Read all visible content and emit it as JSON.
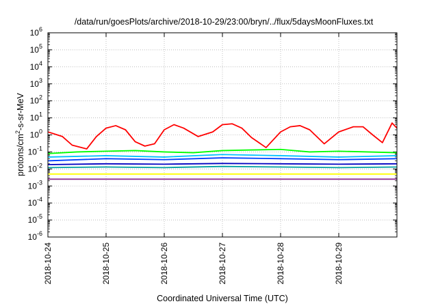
{
  "chart_data": {
    "type": "line",
    "title": "/data/run/goesPlots/archive/2018-10-29/23:00/bryn/../flux/5daysMoonFluxes.txt",
    "xlabel": "Coordinated Universal Time (UTC)",
    "ylabel_parts": [
      "protons/cm",
      "2",
      "-s-sr-MeV"
    ],
    "y_scale": "log",
    "ylim": [
      1e-06,
      1000000.0
    ],
    "y_ticks": [
      {
        "base": "10",
        "exp": "-6"
      },
      {
        "base": "10",
        "exp": "-5"
      },
      {
        "base": "10",
        "exp": "-4"
      },
      {
        "base": "10",
        "exp": "-3"
      },
      {
        "base": "10",
        "exp": "-2"
      },
      {
        "base": "10",
        "exp": "-1"
      },
      {
        "base": "10",
        "exp": "0"
      },
      {
        "base": "10",
        "exp": "1"
      },
      {
        "base": "10",
        "exp": "2"
      },
      {
        "base": "10",
        "exp": "3"
      },
      {
        "base": "10",
        "exp": "4"
      },
      {
        "base": "10",
        "exp": "5"
      },
      {
        "base": "10",
        "exp": "6"
      }
    ],
    "xlim": [
      "2018-10-24T00:00",
      "2018-10-30T00:00"
    ],
    "x_ticks": [
      "2018-10-24",
      "2018-10-25",
      "2018-10-26",
      "2018-10-27",
      "2018-10-28",
      "2018-10-29"
    ],
    "grid": true,
    "legend": false,
    "series": [
      {
        "color": "#ff0000",
        "x": [
          "2018-10-24T00:00",
          "2018-10-24T06:00",
          "2018-10-24T10:00",
          "2018-10-24T16:00",
          "2018-10-24T20:00",
          "2018-10-25T00:00",
          "2018-10-25T04:00",
          "2018-10-25T08:00",
          "2018-10-25T12:00",
          "2018-10-25T16:00",
          "2018-10-25T20:00",
          "2018-10-26T00:00",
          "2018-10-26T04:00",
          "2018-10-26T08:00",
          "2018-10-26T14:00",
          "2018-10-26T20:00",
          "2018-10-27T00:00",
          "2018-10-27T04:00",
          "2018-10-27T08:00",
          "2018-10-27T12:00",
          "2018-10-27T18:00",
          "2018-10-28T00:00",
          "2018-10-28T04:00",
          "2018-10-28T08:00",
          "2018-10-28T12:00",
          "2018-10-28T18:00",
          "2018-10-29T00:00",
          "2018-10-29T06:00",
          "2018-10-29T10:00",
          "2018-10-29T14:00",
          "2018-10-29T18:00",
          "2018-10-29T22:00",
          "2018-10-30T00:00"
        ],
        "y": [
          1.5,
          0.8,
          0.25,
          0.15,
          0.8,
          2.5,
          3.5,
          2.0,
          0.4,
          0.22,
          0.3,
          2.0,
          4.0,
          2.5,
          0.8,
          1.5,
          4.0,
          4.5,
          2.5,
          0.7,
          0.18,
          1.5,
          3.0,
          3.5,
          2.0,
          0.3,
          1.5,
          3.0,
          3.0,
          1.0,
          0.35,
          5.0,
          2.5
        ]
      },
      {
        "color": "#00ff00",
        "x": [
          "2018-10-24T00:00",
          "2018-10-24T12:00",
          "2018-10-25T00:00",
          "2018-10-25T12:00",
          "2018-10-26T00:00",
          "2018-10-26T12:00",
          "2018-10-27T00:00",
          "2018-10-27T12:00",
          "2018-10-28T00:00",
          "2018-10-28T12:00",
          "2018-10-29T00:00",
          "2018-10-29T12:00",
          "2018-10-30T00:00"
        ],
        "y": [
          0.08,
          0.1,
          0.11,
          0.12,
          0.1,
          0.09,
          0.12,
          0.13,
          0.14,
          0.1,
          0.11,
          0.1,
          0.09
        ]
      },
      {
        "color": "#00c0ff",
        "x": [
          "2018-10-24T00:00",
          "2018-10-25T00:00",
          "2018-10-26T00:00",
          "2018-10-27T00:00",
          "2018-10-28T00:00",
          "2018-10-29T00:00",
          "2018-10-30T00:00"
        ],
        "y": [
          0.05,
          0.06,
          0.05,
          0.07,
          0.06,
          0.05,
          0.06
        ]
      },
      {
        "color": "#0040ff",
        "x": [
          "2018-10-24T00:00",
          "2018-10-25T00:00",
          "2018-10-26T00:00",
          "2018-10-27T00:00",
          "2018-10-28T00:00",
          "2018-10-29T00:00",
          "2018-10-30T00:00"
        ],
        "y": [
          0.03,
          0.04,
          0.035,
          0.045,
          0.04,
          0.035,
          0.04
        ]
      },
      {
        "color": "#00a0a0",
        "x": [
          "2018-10-24T00:00",
          "2018-10-25T00:00",
          "2018-10-26T00:00",
          "2018-10-27T00:00",
          "2018-10-28T00:00",
          "2018-10-29T00:00",
          "2018-10-30T00:00"
        ],
        "y": [
          0.012,
          0.013,
          0.012,
          0.014,
          0.013,
          0.012,
          0.013
        ]
      },
      {
        "color": "#0000c0",
        "x": [
          "2018-10-24T00:00",
          "2018-10-25T00:00",
          "2018-10-26T00:00",
          "2018-10-27T00:00",
          "2018-10-28T00:00",
          "2018-10-29T00:00",
          "2018-10-30T00:00"
        ],
        "y": [
          0.018,
          0.02,
          0.019,
          0.021,
          0.02,
          0.019,
          0.02
        ]
      },
      {
        "color": "#ffff00",
        "x": [
          "2018-10-24T00:00",
          "2018-10-25T00:00",
          "2018-10-26T00:00",
          "2018-10-27T00:00",
          "2018-10-28T00:00",
          "2018-10-29T00:00",
          "2018-10-30T00:00"
        ],
        "y": [
          0.005,
          0.005,
          0.005,
          0.005,
          0.005,
          0.005,
          0.005
        ]
      },
      {
        "color": "#903090",
        "x": [
          "2018-10-24T00:00",
          "2018-10-25T00:00",
          "2018-10-26T00:00",
          "2018-10-27T00:00",
          "2018-10-28T00:00",
          "2018-10-29T00:00",
          "2018-10-30T00:00"
        ],
        "y": [
          0.0025,
          0.0025,
          0.0025,
          0.0025,
          0.0025,
          0.0025,
          0.0025
        ]
      }
    ]
  }
}
